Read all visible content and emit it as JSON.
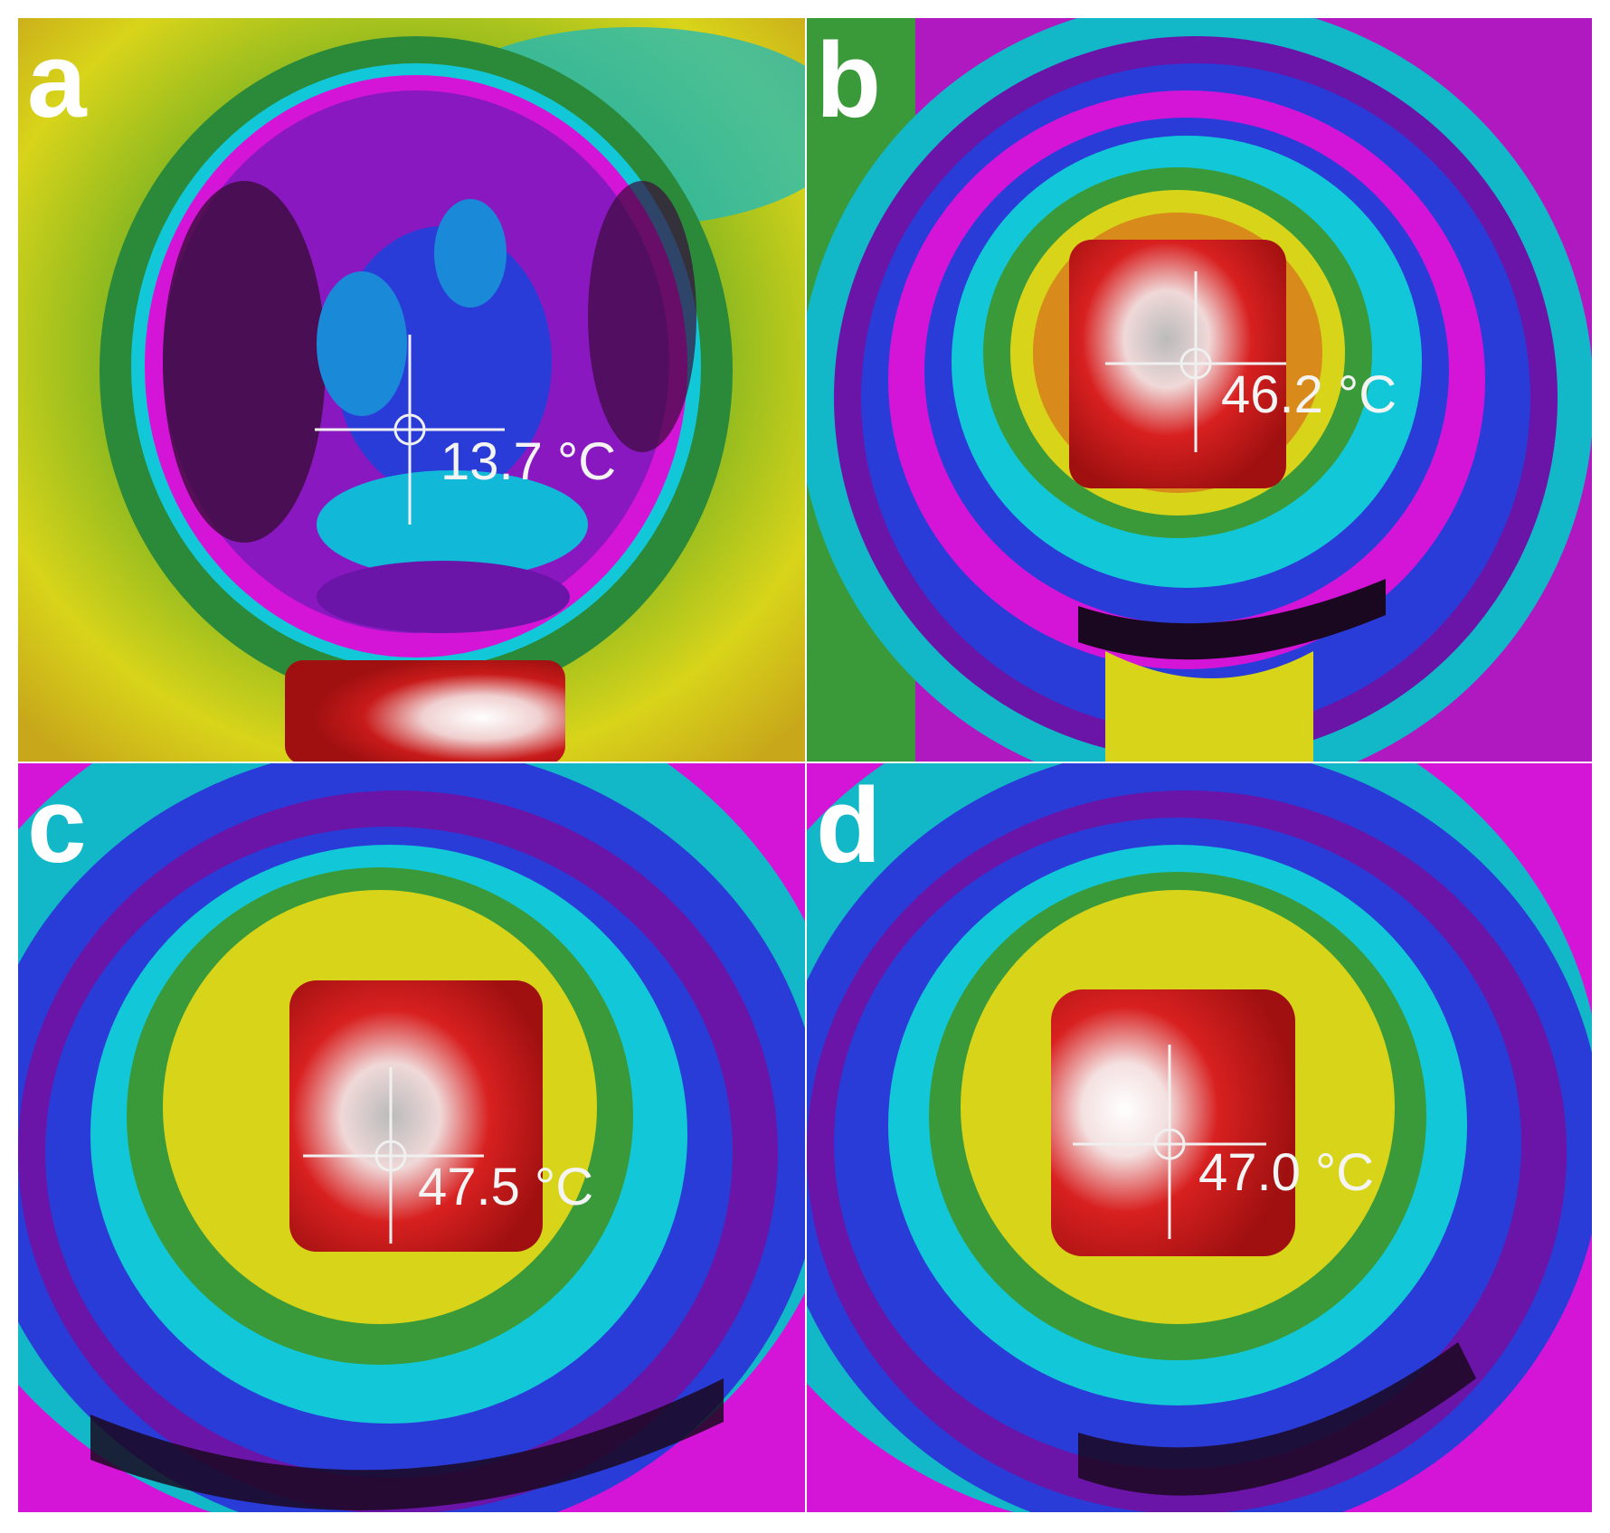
{
  "figure": {
    "palette": {
      "black": "#1a0820",
      "purple": "#6a14a8",
      "magenta": "#d415d8",
      "blue": "#2a3cd8",
      "cyan": "#12c8d8",
      "green": "#4aa028",
      "yellow": "#d8d41a",
      "orange": "#d88a1a",
      "red": "#c81a1a",
      "white": "#ffffff"
    },
    "panels": [
      {
        "letter": "a",
        "temperature": "13.7 °C",
        "hot_spot": "flat heater below"
      },
      {
        "letter": "b",
        "temperature": "46.2 °C",
        "hot_spot": "central square"
      },
      {
        "letter": "c",
        "temperature": "47.5 °C",
        "hot_spot": "central square"
      },
      {
        "letter": "d",
        "temperature": "47.0 °C",
        "hot_spot": "central square"
      }
    ]
  }
}
